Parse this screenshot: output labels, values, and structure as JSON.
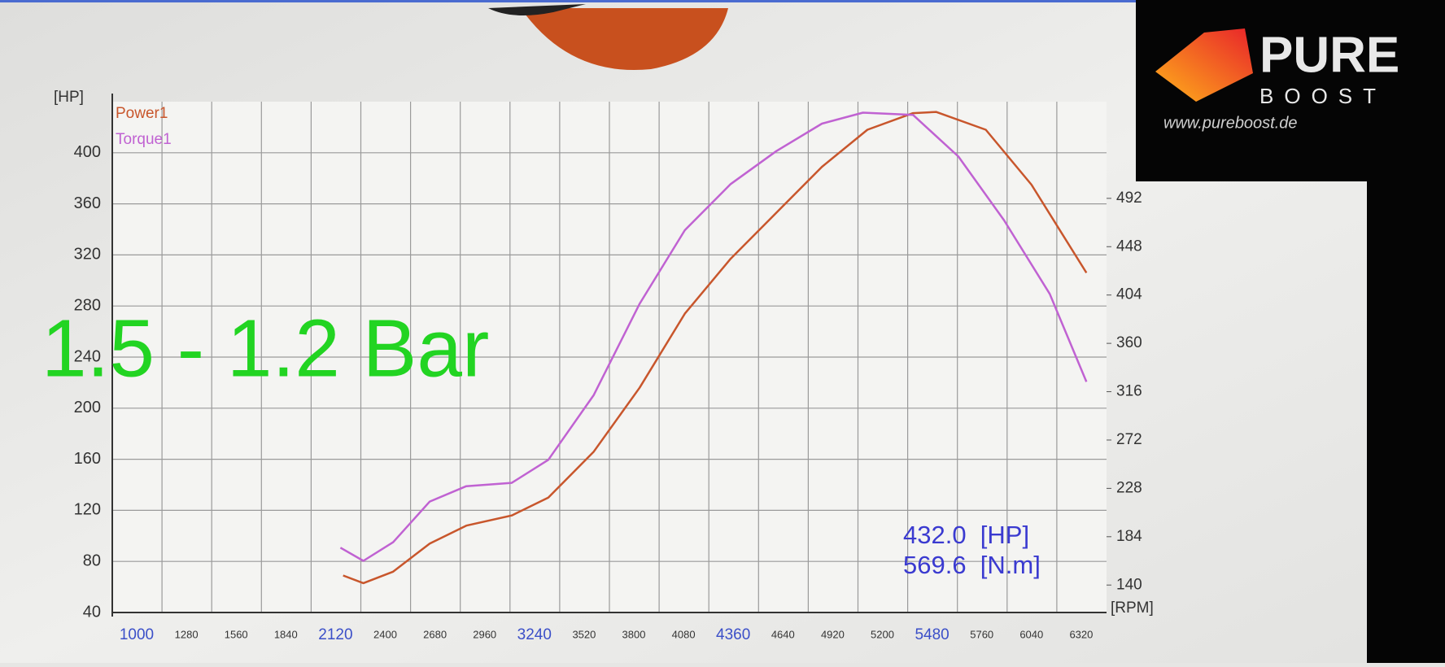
{
  "chart_data": {
    "type": "line",
    "annotations": [
      "1.5 - 1.2 Bar",
      "432.0  [HP]",
      "569.6  [N.m]"
    ],
    "y_label": "[HP]",
    "x_label": "[RPM]",
    "xlim": [
      1000,
      6600
    ],
    "xticks": [
      1000,
      1280,
      1560,
      1840,
      2120,
      2400,
      2680,
      2960,
      3240,
      3520,
      3800,
      4080,
      4360,
      4640,
      4920,
      5200,
      5480,
      5760,
      6040,
      6320
    ],
    "ylim": [
      40,
      440
    ],
    "yticks": [
      40,
      80,
      120,
      160,
      200,
      240,
      280,
      320,
      360,
      400
    ],
    "y2lim": [
      115,
      580
    ],
    "y2ticks": [
      140,
      184,
      228,
      272,
      316,
      360,
      404,
      448,
      492
    ],
    "grid": true,
    "legend": "top-left",
    "series": [
      {
        "name": "Power1",
        "color": "#c8562c",
        "x": [
          2300,
          2414,
          2582,
          2788,
          2994,
          3250,
          3456,
          3712,
          3970,
          4225,
          4483,
          4740,
          4997,
          5253,
          5510,
          5640,
          5920,
          6177,
          6487
        ],
        "values": [
          69,
          63,
          72,
          94,
          108,
          116,
          130,
          166,
          216,
          274,
          317,
          353,
          389,
          418,
          431,
          432,
          418,
          375,
          306
        ]
      },
      {
        "name": "Torque1",
        "color": "#c062d2",
        "axis": "y2",
        "x": [
          2285,
          2414,
          2582,
          2788,
          2994,
          3250,
          3456,
          3712,
          3970,
          4225,
          4483,
          4740,
          4997,
          5228,
          5510,
          5766,
          6023,
          6280,
          6487
        ],
        "values": [
          174,
          162,
          179,
          216,
          230,
          233,
          254,
          313,
          396,
          463,
          505,
          535,
          560,
          570,
          568,
          530,
          472,
          405,
          325
        ]
      }
    ]
  },
  "logo": {
    "word1": "PURE",
    "word2": "BOOST",
    "url": "www.pureboost.de"
  }
}
